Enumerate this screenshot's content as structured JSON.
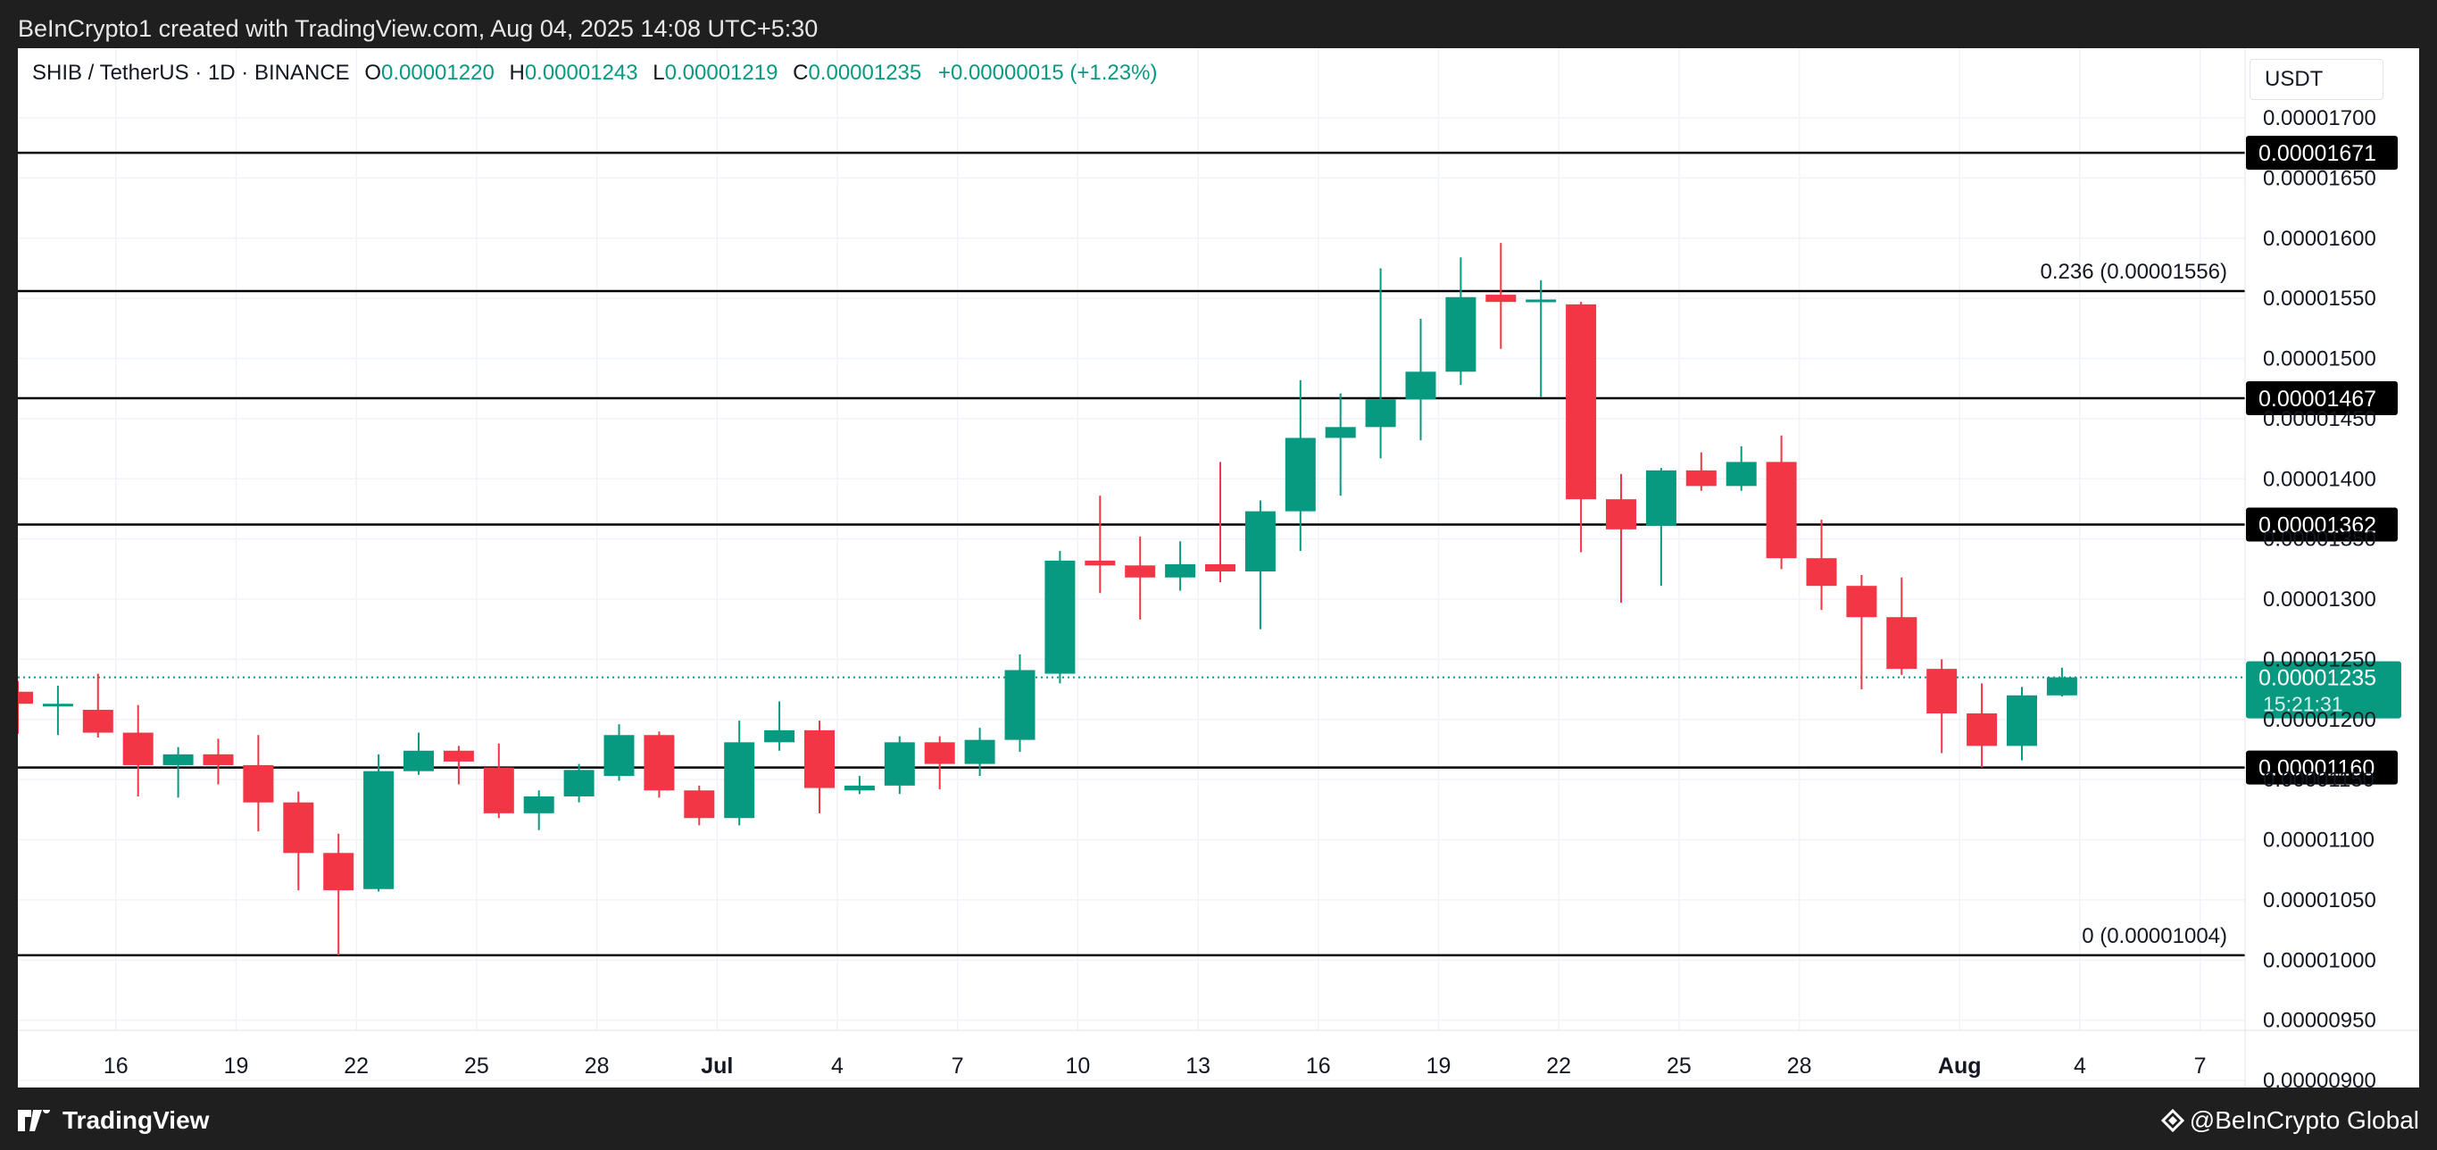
{
  "header": {
    "attribution": "BeInCrypto1 created with TradingView.com, Aug 04, 2025 14:08 UTC+5:30"
  },
  "legend": {
    "symbol": "SHIB / TetherUS · 1D · BINANCE",
    "o_label": "O",
    "o_value": "0.00001220",
    "h_label": "H",
    "h_value": "0.00001243",
    "l_label": "L",
    "l_value": "0.00001219",
    "c_label": "C",
    "c_value": "0.00001235",
    "change": "+0.00000015 (+1.23%)"
  },
  "currency": "USDT",
  "footer": {
    "left_brand": "TradingView",
    "right_brand": "@BeInCrypto Global"
  },
  "colors": {
    "up": "#089981",
    "down": "#f23645",
    "grid": "#f0f3fa",
    "level": "#000000",
    "text": "#131722"
  },
  "chart_data": {
    "type": "candlestick",
    "title": "SHIB / TetherUS · 1D · BINANCE",
    "ylim": [
      8.8e-06,
      1.73e-05
    ],
    "y_ticks": [
      {
        "value": 1.7e-05,
        "label": "0.00001700"
      },
      {
        "value": 1.65e-05,
        "label": "0.00001650"
      },
      {
        "value": 1.6e-05,
        "label": "0.00001600"
      },
      {
        "value": 1.55e-05,
        "label": "0.00001550"
      },
      {
        "value": 1.5e-05,
        "label": "0.00001500"
      },
      {
        "value": 1.45e-05,
        "label": "0.00001450"
      },
      {
        "value": 1.4e-05,
        "label": "0.00001400"
      },
      {
        "value": 1.35e-05,
        "label": "0.00001350"
      },
      {
        "value": 1.3e-05,
        "label": "0.00001300"
      },
      {
        "value": 1.25e-05,
        "label": "0.00001250"
      },
      {
        "value": 1.2e-05,
        "label": "0.00001200"
      },
      {
        "value": 1.15e-05,
        "label": "0.00001150"
      },
      {
        "value": 1.1e-05,
        "label": "0.00001100"
      },
      {
        "value": 1.05e-05,
        "label": "0.00001050"
      },
      {
        "value": 1e-05,
        "label": "0.00001000"
      },
      {
        "value": 9.5e-06,
        "label": "0.00000950"
      },
      {
        "value": 9e-06,
        "label": "0.00000900"
      }
    ],
    "x_ticks": [
      {
        "index": 2,
        "label": "16"
      },
      {
        "index": 5,
        "label": "19"
      },
      {
        "index": 8,
        "label": "22"
      },
      {
        "index": 11,
        "label": "25"
      },
      {
        "index": 14,
        "label": "28"
      },
      {
        "index": 17,
        "label": "Jul",
        "bold": true
      },
      {
        "index": 20,
        "label": "4"
      },
      {
        "index": 23,
        "label": "7"
      },
      {
        "index": 26,
        "label": "10"
      },
      {
        "index": 29,
        "label": "13"
      },
      {
        "index": 32,
        "label": "16"
      },
      {
        "index": 35,
        "label": "19"
      },
      {
        "index": 38,
        "label": "22"
      },
      {
        "index": 41,
        "label": "25"
      },
      {
        "index": 44,
        "label": "28"
      },
      {
        "index": 48,
        "label": "Aug",
        "bold": true
      },
      {
        "index": 51,
        "label": "4"
      },
      {
        "index": 54,
        "label": "7"
      }
    ],
    "candles": [
      {
        "o": 1.223e-05,
        "h": 1.232e-05,
        "l": 1.188e-05,
        "c": 1.213e-05
      },
      {
        "o": 1.213e-05,
        "h": 1.228e-05,
        "l": 1.187e-05,
        "c": 1.213e-05
      },
      {
        "o": 1.208e-05,
        "h": 1.238e-05,
        "l": 1.185e-05,
        "c": 1.189e-05
      },
      {
        "o": 1.189e-05,
        "h": 1.212e-05,
        "l": 1.136e-05,
        "c": 1.162e-05
      },
      {
        "o": 1.162e-05,
        "h": 1.177e-05,
        "l": 1.135e-05,
        "c": 1.171e-05
      },
      {
        "o": 1.171e-05,
        "h": 1.184e-05,
        "l": 1.146e-05,
        "c": 1.162e-05
      },
      {
        "o": 1.162e-05,
        "h": 1.187e-05,
        "l": 1.107e-05,
        "c": 1.131e-05
      },
      {
        "o": 1.131e-05,
        "h": 1.14e-05,
        "l": 1.058e-05,
        "c": 1.089e-05
      },
      {
        "o": 1.089e-05,
        "h": 1.105e-05,
        "l": 1.004e-05,
        "c": 1.058e-05
      },
      {
        "o": 1.059e-05,
        "h": 1.171e-05,
        "l": 1.057e-05,
        "c": 1.157e-05
      },
      {
        "o": 1.157e-05,
        "h": 1.189e-05,
        "l": 1.154e-05,
        "c": 1.174e-05
      },
      {
        "o": 1.174e-05,
        "h": 1.178e-05,
        "l": 1.146e-05,
        "c": 1.165e-05
      },
      {
        "o": 1.16e-05,
        "h": 1.18e-05,
        "l": 1.118e-05,
        "c": 1.122e-05
      },
      {
        "o": 1.122e-05,
        "h": 1.141e-05,
        "l": 1.108e-05,
        "c": 1.136e-05
      },
      {
        "o": 1.136e-05,
        "h": 1.163e-05,
        "l": 1.131e-05,
        "c": 1.158e-05
      },
      {
        "o": 1.153e-05,
        "h": 1.196e-05,
        "l": 1.149e-05,
        "c": 1.187e-05
      },
      {
        "o": 1.187e-05,
        "h": 1.19e-05,
        "l": 1.135e-05,
        "c": 1.141e-05
      },
      {
        "o": 1.141e-05,
        "h": 1.145e-05,
        "l": 1.112e-05,
        "c": 1.118e-05
      },
      {
        "o": 1.118e-05,
        "h": 1.199e-05,
        "l": 1.112e-05,
        "c": 1.181e-05
      },
      {
        "o": 1.181e-05,
        "h": 1.215e-05,
        "l": 1.174e-05,
        "c": 1.191e-05
      },
      {
        "o": 1.191e-05,
        "h": 1.199e-05,
        "l": 1.122e-05,
        "c": 1.143e-05
      },
      {
        "o": 1.141e-05,
        "h": 1.153e-05,
        "l": 1.138e-05,
        "c": 1.145e-05
      },
      {
        "o": 1.145e-05,
        "h": 1.186e-05,
        "l": 1.138e-05,
        "c": 1.181e-05
      },
      {
        "o": 1.181e-05,
        "h": 1.186e-05,
        "l": 1.142e-05,
        "c": 1.163e-05
      },
      {
        "o": 1.163e-05,
        "h": 1.193e-05,
        "l": 1.153e-05,
        "c": 1.183e-05
      },
      {
        "o": 1.183e-05,
        "h": 1.254e-05,
        "l": 1.173e-05,
        "c": 1.241e-05
      },
      {
        "o": 1.238e-05,
        "h": 1.34e-05,
        "l": 1.23e-05,
        "c": 1.332e-05
      },
      {
        "o": 1.332e-05,
        "h": 1.386e-05,
        "l": 1.305e-05,
        "c": 1.328e-05
      },
      {
        "o": 1.328e-05,
        "h": 1.352e-05,
        "l": 1.283e-05,
        "c": 1.318e-05
      },
      {
        "o": 1.318e-05,
        "h": 1.348e-05,
        "l": 1.307e-05,
        "c": 1.329e-05
      },
      {
        "o": 1.329e-05,
        "h": 1.414e-05,
        "l": 1.314e-05,
        "c": 1.323e-05
      },
      {
        "o": 1.323e-05,
        "h": 1.382e-05,
        "l": 1.275e-05,
        "c": 1.373e-05
      },
      {
        "o": 1.373e-05,
        "h": 1.482e-05,
        "l": 1.34e-05,
        "c": 1.434e-05
      },
      {
        "o": 1.434e-05,
        "h": 1.471e-05,
        "l": 1.386e-05,
        "c": 1.443e-05
      },
      {
        "o": 1.443e-05,
        "h": 1.575e-05,
        "l": 1.417e-05,
        "c": 1.466e-05
      },
      {
        "o": 1.466e-05,
        "h": 1.533e-05,
        "l": 1.432e-05,
        "c": 1.489e-05
      },
      {
        "o": 1.489e-05,
        "h": 1.584e-05,
        "l": 1.478e-05,
        "c": 1.551e-05
      },
      {
        "o": 1.553e-05,
        "h": 1.596e-05,
        "l": 1.508e-05,
        "c": 1.547e-05
      },
      {
        "o": 1.549e-05,
        "h": 1.565e-05,
        "l": 1.468e-05,
        "c": 1.549e-05
      },
      {
        "o": 1.545e-05,
        "h": 1.547e-05,
        "l": 1.339e-05,
        "c": 1.383e-05
      },
      {
        "o": 1.383e-05,
        "h": 1.404e-05,
        "l": 1.297e-05,
        "c": 1.358e-05
      },
      {
        "o": 1.361e-05,
        "h": 1.409e-05,
        "l": 1.311e-05,
        "c": 1.407e-05
      },
      {
        "o": 1.407e-05,
        "h": 1.422e-05,
        "l": 1.39e-05,
        "c": 1.394e-05
      },
      {
        "o": 1.394e-05,
        "h": 1.427e-05,
        "l": 1.39e-05,
        "c": 1.414e-05
      },
      {
        "o": 1.414e-05,
        "h": 1.436e-05,
        "l": 1.325e-05,
        "c": 1.334e-05
      },
      {
        "o": 1.334e-05,
        "h": 1.366e-05,
        "l": 1.291e-05,
        "c": 1.311e-05
      },
      {
        "o": 1.311e-05,
        "h": 1.32e-05,
        "l": 1.225e-05,
        "c": 1.285e-05
      },
      {
        "o": 1.285e-05,
        "h": 1.318e-05,
        "l": 1.237e-05,
        "c": 1.242e-05
      },
      {
        "o": 1.242e-05,
        "h": 1.25e-05,
        "l": 1.172e-05,
        "c": 1.205e-05
      },
      {
        "o": 1.205e-05,
        "h": 1.23e-05,
        "l": 1.16e-05,
        "c": 1.178e-05
      },
      {
        "o": 1.178e-05,
        "h": 1.227e-05,
        "l": 1.166e-05,
        "c": 1.22e-05
      },
      {
        "o": 1.22e-05,
        "h": 1.243e-05,
        "l": 1.219e-05,
        "c": 1.235e-05
      }
    ],
    "horizontal_levels": [
      {
        "value": 1.671e-05,
        "badge": "0.00001671"
      },
      {
        "value": 1.556e-05,
        "label": "0.236 (0.00001556)"
      },
      {
        "value": 1.467e-05,
        "badge": "0.00001467"
      },
      {
        "value": 1.362e-05,
        "badge": "0.00001362"
      },
      {
        "value": 1.16e-05,
        "badge": "0.00001160"
      },
      {
        "value": 1.004e-05,
        "label": "0 (0.00001004)"
      }
    ],
    "last_price": {
      "value": 1.235e-05,
      "label": "0.00001235",
      "countdown": "15:21:31"
    }
  }
}
